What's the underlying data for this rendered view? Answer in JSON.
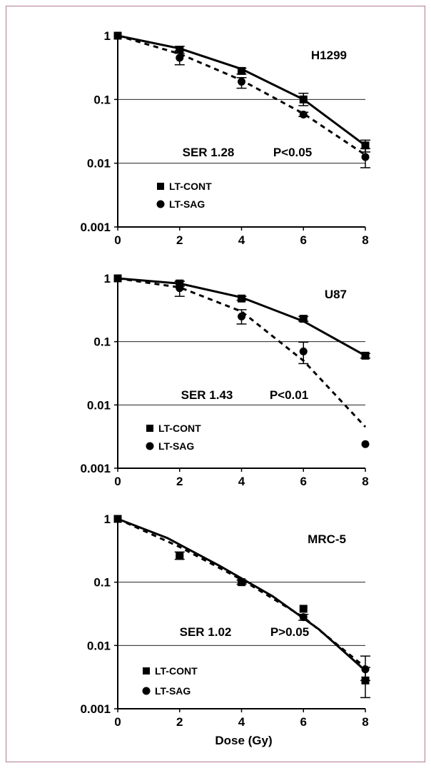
{
  "colors": {
    "frame": "#b07c98",
    "ink": "#000000",
    "grid": "#000000"
  },
  "chart_data": [
    {
      "type": "line",
      "title": "H1299",
      "stats": {
        "ser": "SER 1.28",
        "p": "P<0.05"
      },
      "xlabel": "",
      "ylabel": "",
      "xlim": [
        0,
        8
      ],
      "ylim": [
        0.001,
        1
      ],
      "yscale": "log",
      "x_ticks": [
        "0",
        "2",
        "4",
        "6",
        "8"
      ],
      "y_ticks": [
        "1",
        "0.1",
        "0.01",
        "0.001"
      ],
      "grid": "horizontal",
      "legend": {
        "placement": "lower-left",
        "entries": [
          "LT-CONT",
          "LT-SAG"
        ]
      },
      "series": [
        {
          "name": "LT-CONT",
          "marker": "square",
          "line": "solid",
          "points": [
            {
              "x": 0,
              "y": 1.0
            },
            {
              "x": 2,
              "y": 0.6,
              "err": [
                0.53,
                0.68
              ]
            },
            {
              "x": 4,
              "y": 0.28,
              "err": [
                0.25,
                0.31
              ]
            },
            {
              "x": 6,
              "y": 0.1,
              "err": [
                0.08,
                0.125
              ]
            },
            {
              "x": 8,
              "y": 0.019,
              "err": [
                0.015,
                0.023
              ]
            }
          ],
          "curve": [
            {
              "x": 0,
              "y": 1.0
            },
            {
              "x": 2,
              "y": 0.63
            },
            {
              "x": 4,
              "y": 0.3
            },
            {
              "x": 6,
              "y": 0.1
            },
            {
              "x": 8,
              "y": 0.019
            }
          ]
        },
        {
          "name": "LT-SAG",
          "marker": "circle",
          "line": "dashed",
          "points": [
            {
              "x": 0,
              "y": 1.0
            },
            {
              "x": 2,
              "y": 0.45,
              "err": [
                0.35,
                0.58
              ]
            },
            {
              "x": 4,
              "y": 0.19,
              "err": [
                0.15,
                0.22
              ]
            },
            {
              "x": 6,
              "y": 0.058,
              "err": [
                0.054,
                0.063
              ]
            },
            {
              "x": 8,
              "y": 0.0125,
              "err": [
                0.0085,
                0.017
              ]
            }
          ],
          "curve": [
            {
              "x": 0,
              "y": 1.0
            },
            {
              "x": 2,
              "y": 0.52
            },
            {
              "x": 4,
              "y": 0.2
            },
            {
              "x": 6,
              "y": 0.06
            },
            {
              "x": 8,
              "y": 0.0135
            }
          ]
        }
      ]
    },
    {
      "type": "line",
      "title": "U87",
      "stats": {
        "ser": "SER 1.43",
        "p": "P<0.01"
      },
      "xlabel": "",
      "ylabel": "",
      "xlim": [
        0,
        8
      ],
      "ylim": [
        0.001,
        1
      ],
      "yscale": "log",
      "x_ticks": [
        "0",
        "2",
        "4",
        "6",
        "8"
      ],
      "y_ticks": [
        "1",
        "0.1",
        "0.01",
        "0.001"
      ],
      "grid": "horizontal",
      "legend": {
        "placement": "lower-left",
        "entries": [
          "LT-CONT",
          "LT-SAG"
        ]
      },
      "series": [
        {
          "name": "LT-CONT",
          "marker": "square",
          "line": "solid",
          "points": [
            {
              "x": 0,
              "y": 1.0
            },
            {
              "x": 2,
              "y": 0.83,
              "err": [
                0.75,
                0.9
              ]
            },
            {
              "x": 4,
              "y": 0.48,
              "err": [
                0.45,
                0.52
              ]
            },
            {
              "x": 6,
              "y": 0.23,
              "err": [
                0.21,
                0.25
              ]
            },
            {
              "x": 8,
              "y": 0.06,
              "err": [
                0.055,
                0.065
              ]
            }
          ],
          "curve": [
            {
              "x": 0,
              "y": 1.0
            },
            {
              "x": 2,
              "y": 0.83
            },
            {
              "x": 4,
              "y": 0.5
            },
            {
              "x": 6,
              "y": 0.21
            },
            {
              "x": 8,
              "y": 0.06
            }
          ]
        },
        {
          "name": "LT-SAG",
          "marker": "circle",
          "line": "dashed",
          "points": [
            {
              "x": 0,
              "y": 1.0
            },
            {
              "x": 2,
              "y": 0.7,
              "err": [
                0.52,
                0.9
              ]
            },
            {
              "x": 4,
              "y": 0.25,
              "err": [
                0.19,
                0.32
              ]
            },
            {
              "x": 6,
              "y": 0.07,
              "err": [
                0.045,
                0.098
              ]
            },
            {
              "x": 8,
              "y": 0.0024
            }
          ],
          "curve": [
            {
              "x": 0,
              "y": 1.0
            },
            {
              "x": 2,
              "y": 0.72
            },
            {
              "x": 4,
              "y": 0.3
            },
            {
              "x": 6,
              "y": 0.05
            },
            {
              "x": 8,
              "y": 0.0045
            }
          ]
        }
      ]
    },
    {
      "type": "line",
      "title": "MRC-5",
      "stats": {
        "ser": "SER 1.02",
        "p": "P>0.05"
      },
      "xlabel": "Dose (Gy)",
      "ylabel": "",
      "xlim": [
        0,
        8
      ],
      "ylim": [
        0.001,
        1
      ],
      "yscale": "log",
      "x_ticks": [
        "0",
        "2",
        "4",
        "6",
        "8"
      ],
      "y_ticks": [
        "1",
        "0.1",
        "0.01",
        "0.001"
      ],
      "grid": "horizontal",
      "legend": {
        "placement": "lower-left",
        "entries": [
          "LT-CONT",
          "LT-SAG"
        ]
      },
      "series": [
        {
          "name": "LT-CONT",
          "marker": "square",
          "line": "solid",
          "points": [
            {
              "x": 0,
              "y": 1.0
            },
            {
              "x": 2,
              "y": 0.26
            },
            {
              "x": 4,
              "y": 0.1,
              "err": [
                0.093,
                0.108
              ]
            },
            {
              "x": 6,
              "y": 0.038
            },
            {
              "x": 8,
              "y": 0.0028,
              "err": [
                0.0015,
                0.0045
              ]
            }
          ],
          "curve": [
            {
              "x": 0,
              "y": 1.0
            },
            {
              "x": 1.6,
              "y": 0.5
            },
            {
              "x": 3.3,
              "y": 0.18
            },
            {
              "x": 5,
              "y": 0.06
            },
            {
              "x": 6.5,
              "y": 0.018
            },
            {
              "x": 8,
              "y": 0.004
            }
          ]
        },
        {
          "name": "LT-SAG",
          "marker": "circle",
          "line": "dashed",
          "points": [
            {
              "x": 0,
              "y": 1.0
            },
            {
              "x": 2,
              "y": 0.26,
              "err": [
                0.23,
                0.3
              ]
            },
            {
              "x": 4,
              "y": 0.1
            },
            {
              "x": 6,
              "y": 0.028,
              "err": [
                0.025,
                0.031
              ]
            },
            {
              "x": 8,
              "y": 0.0042,
              "err": [
                0.0028,
                0.0068
              ]
            }
          ],
          "curve": [
            {
              "x": 0,
              "y": 1.0
            },
            {
              "x": 2,
              "y": 0.36
            },
            {
              "x": 4,
              "y": 0.11
            },
            {
              "x": 6,
              "y": 0.028
            },
            {
              "x": 8,
              "y": 0.0045
            }
          ]
        }
      ]
    }
  ]
}
